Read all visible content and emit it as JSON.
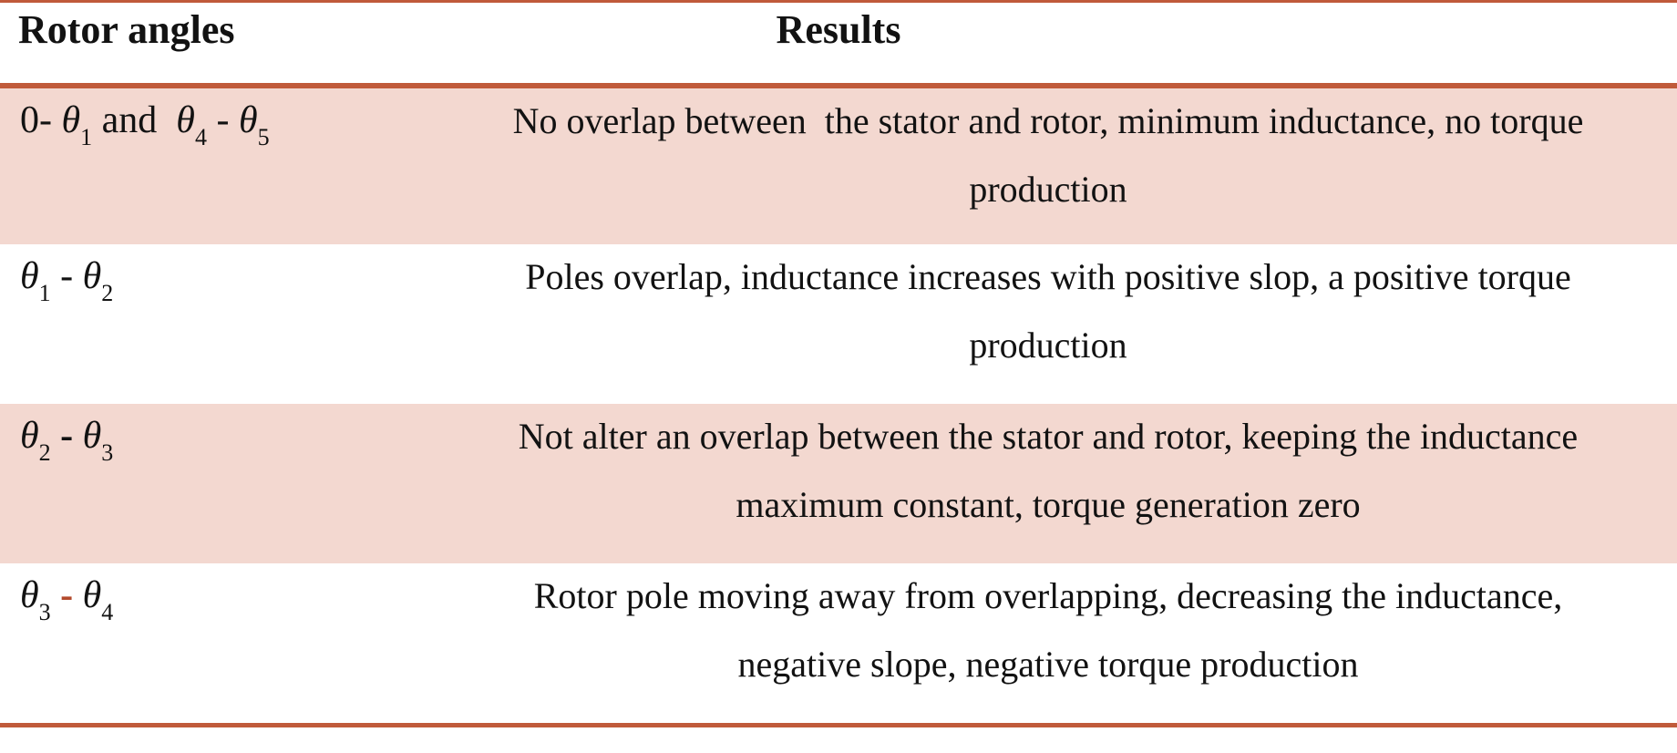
{
  "table": {
    "accent_color": "#c05a3a",
    "shade_color": "#f3d8d0",
    "red_dash_color": "#b34a2c",
    "headers": {
      "col1": "Rotor angles",
      "col2": "Results"
    },
    "rows": [
      {
        "angle_segments": [
          {
            "type": "text",
            "value": "0- "
          },
          {
            "type": "theta",
            "value": "θ"
          },
          {
            "type": "sub",
            "value": "1"
          },
          {
            "type": "text",
            "value": " and  "
          },
          {
            "type": "theta",
            "value": "θ"
          },
          {
            "type": "sub",
            "value": "4"
          },
          {
            "type": "text",
            "value": " - "
          },
          {
            "type": "theta",
            "value": "θ"
          },
          {
            "type": "sub",
            "value": "5"
          }
        ],
        "result_line1": "No overlap between  the stator and rotor, minimum inductance, no torque",
        "result_line2": "production",
        "shaded": true
      },
      {
        "angle_segments": [
          {
            "type": "theta",
            "value": "θ"
          },
          {
            "type": "sub",
            "value": "1"
          },
          {
            "type": "text",
            "value": " - "
          },
          {
            "type": "theta",
            "value": "θ"
          },
          {
            "type": "sub",
            "value": "2"
          }
        ],
        "result_line1": "Poles overlap, inductance increases with positive slop, a positive torque",
        "result_line2": "production",
        "shaded": false
      },
      {
        "angle_segments": [
          {
            "type": "theta",
            "value": "θ"
          },
          {
            "type": "sub",
            "value": "2"
          },
          {
            "type": "dash-bold",
            "value": " - "
          },
          {
            "type": "theta",
            "value": "θ"
          },
          {
            "type": "sub",
            "value": "3"
          }
        ],
        "result_line1": "Not alter an overlap between the stator and rotor, keeping the inductance",
        "result_line2": "maximum constant, torque generation zero",
        "shaded": true
      },
      {
        "angle_segments": [
          {
            "type": "theta",
            "value": "θ"
          },
          {
            "type": "sub",
            "value": "3"
          },
          {
            "type": "dash-red",
            "value": " - "
          },
          {
            "type": "theta",
            "value": "θ"
          },
          {
            "type": "sub",
            "value": "4"
          }
        ],
        "result_line1": "Rotor pole moving away from overlapping, decreasing the inductance,",
        "result_line2": "negative slope, negative torque production",
        "shaded": false
      }
    ]
  }
}
